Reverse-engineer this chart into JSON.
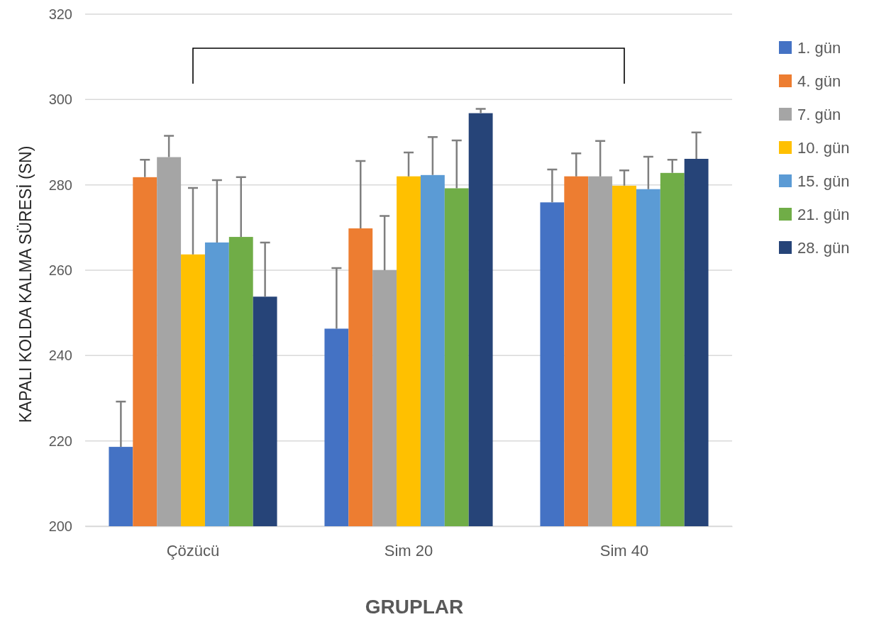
{
  "chart_data": {
    "type": "bar",
    "xlabel": "GRUPLAR",
    "ylabel": "KAPALI KOLDA KALMA SÜRESİ (SN)",
    "categories": [
      "Çözücü",
      "Sim 20",
      "Sim 40"
    ],
    "ylim": [
      200,
      320
    ],
    "yticks": [
      200,
      220,
      240,
      260,
      280,
      300,
      320
    ],
    "grid": "y",
    "legend": "right",
    "series": [
      {
        "name": "1. gün",
        "color": "#4472c4",
        "values": [
          218.6,
          246.3,
          275.9
        ],
        "errors": [
          [
            218.6,
            229.2
          ],
          [
            246.3,
            260.5
          ],
          [
            275.9,
            283.6
          ]
        ]
      },
      {
        "name": "4. gün",
        "color": "#ed7d31",
        "values": [
          281.8,
          269.8,
          282.0
        ],
        "errors": [
          [
            281.8,
            285.9
          ],
          [
            269.8,
            285.6
          ],
          [
            282.0,
            287.4
          ]
        ]
      },
      {
        "name": "7. gün",
        "color": "#a5a5a5",
        "values": [
          286.5,
          260.0,
          282.0
        ],
        "errors": [
          [
            286.5,
            291.5
          ],
          [
            260.0,
            272.7
          ],
          [
            282.0,
            290.3
          ]
        ]
      },
      {
        "name": "10. gün",
        "color": "#ffc000",
        "values": [
          263.7,
          282.0,
          279.8
        ],
        "errors": [
          [
            263.7,
            279.3
          ],
          [
            282.0,
            287.6
          ],
          [
            279.8,
            283.4
          ]
        ]
      },
      {
        "name": "15. gün",
        "color": "#5b9bd5",
        "values": [
          266.5,
          282.3,
          279.0
        ],
        "errors": [
          [
            266.5,
            281.1
          ],
          [
            282.3,
            291.2
          ],
          [
            279.0,
            286.6
          ]
        ]
      },
      {
        "name": "21. gün",
        "color": "#70ad47",
        "values": [
          267.8,
          279.2,
          282.8
        ],
        "errors": [
          [
            267.8,
            281.8
          ],
          [
            279.2,
            290.4
          ],
          [
            282.8,
            285.9
          ]
        ]
      },
      {
        "name": "28. gün",
        "color": "#264478",
        "values": [
          253.8,
          296.8,
          286.1
        ],
        "errors": [
          [
            253.8,
            266.5
          ],
          [
            296.8,
            297.8
          ],
          [
            286.1,
            292.3
          ]
        ]
      }
    ]
  }
}
